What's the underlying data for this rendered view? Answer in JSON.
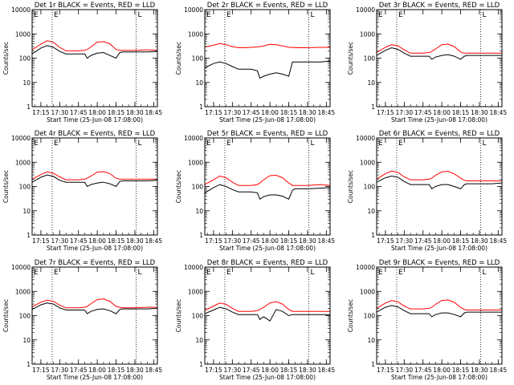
{
  "figure": {
    "x_tick_labels": [
      "17:15",
      "17:30",
      "17:45",
      "18:00",
      "18:15",
      "18:30",
      "18:45"
    ],
    "y_tick_labels": [
      "1",
      "10",
      "100",
      "1000",
      "10000"
    ],
    "ylabel": "Counts/sec",
    "xlabel": "Start Time (25-Jun-08 17:08:00)",
    "marker_labels": [
      "E",
      "L"
    ],
    "colors": {
      "events": "#000000",
      "lld": "#ff0000",
      "axes": "#000000"
    }
  },
  "chart_data": [
    {
      "type": "line",
      "title": "Det 1r BLACK = Events, RED = LLD",
      "xlabel": "Start Time (25-Jun-08 17:08:00)",
      "ylabel": "Counts/sec",
      "x_range": [
        "17:08",
        "18:48"
      ],
      "ylim": [
        1,
        10000
      ],
      "y_scale": "log",
      "vertical_markers": [
        {
          "label": "E",
          "x": "17:24"
        },
        {
          "label": "L",
          "x": "18:31"
        }
      ],
      "x": [
        "17:08",
        "17:15",
        "17:20",
        "17:25",
        "17:30",
        "17:35",
        "17:40",
        "17:45",
        "17:50",
        "17:52",
        "17:55",
        "18:00",
        "18:05",
        "18:10",
        "18:15",
        "18:18",
        "18:20",
        "18:30",
        "18:40",
        "18:48"
      ],
      "series": [
        {
          "name": "",
          "color": "#ff0000",
          "values": [
            220,
            380,
            520,
            450,
            280,
            200,
            200,
            200,
            210,
            230,
            290,
            460,
            480,
            390,
            230,
            210,
            210,
            210,
            220,
            210
          ]
        },
        {
          "name": "",
          "color": "#000000",
          "values": [
            150,
            260,
            330,
            280,
            190,
            150,
            150,
            150,
            150,
            100,
            130,
            160,
            170,
            130,
            100,
            170,
            180,
            180,
            180,
            190
          ]
        }
      ]
    },
    {
      "type": "line",
      "title": "Det 2r BLACK = Events, RED = LLD",
      "xlabel": "Start Time (25-Jun-08 17:08:00)",
      "ylabel": "Counts/sec",
      "x_range": [
        "17:08",
        "18:48"
      ],
      "ylim": [
        1,
        10000
      ],
      "y_scale": "log",
      "vertical_markers": [
        {
          "label": "E",
          "x": "17:24"
        },
        {
          "label": "L",
          "x": "18:31"
        }
      ],
      "x": [
        "17:08",
        "17:15",
        "17:20",
        "17:25",
        "17:30",
        "17:35",
        "17:40",
        "17:45",
        "17:50",
        "17:52",
        "17:55",
        "18:00",
        "18:05",
        "18:10",
        "18:15",
        "18:18",
        "18:20",
        "18:30",
        "18:40",
        "18:48"
      ],
      "series": [
        {
          "name": "",
          "color": "#ff0000",
          "values": [
            290,
            340,
            400,
            360,
            300,
            270,
            270,
            280,
            290,
            300,
            320,
            370,
            360,
            320,
            280,
            280,
            270,
            270,
            280,
            280
          ]
        },
        {
          "name": "",
          "color": "#000000",
          "values": [
            40,
            60,
            70,
            60,
            45,
            35,
            35,
            35,
            30,
            15,
            18,
            22,
            25,
            22,
            18,
            70,
            70,
            70,
            70,
            75
          ]
        }
      ]
    },
    {
      "type": "line",
      "title": "Det 3r BLACK = Events, RED = LLD",
      "xlabel": "Start Time (25-Jun-08 17:08:00)",
      "ylabel": "Counts/sec",
      "x_range": [
        "17:08",
        "18:48"
      ],
      "ylim": [
        1,
        10000
      ],
      "y_scale": "log",
      "vertical_markers": [
        {
          "label": "E",
          "x": "17:24"
        },
        {
          "label": "L",
          "x": "18:31"
        }
      ],
      "x": [
        "17:08",
        "17:15",
        "17:20",
        "17:25",
        "17:30",
        "17:35",
        "17:40",
        "17:45",
        "17:50",
        "17:52",
        "17:55",
        "18:00",
        "18:05",
        "18:10",
        "18:15",
        "18:18",
        "18:20",
        "18:30",
        "18:40",
        "18:48"
      ],
      "series": [
        {
          "name": "",
          "color": "#ff0000",
          "values": [
            170,
            280,
            360,
            320,
            220,
            160,
            160,
            160,
            170,
            190,
            240,
            360,
            380,
            300,
            180,
            160,
            160,
            160,
            160,
            160
          ]
        },
        {
          "name": "",
          "color": "#000000",
          "values": [
            130,
            210,
            270,
            230,
            160,
            120,
            120,
            120,
            120,
            90,
            110,
            130,
            140,
            120,
            90,
            120,
            130,
            130,
            130,
            130
          ]
        }
      ]
    },
    {
      "type": "line",
      "title": "Det 4r BLACK = Events, RED = LLD",
      "xlabel": "Start Time (25-Jun-08 17:08:00)",
      "ylabel": "Counts/sec",
      "x_range": [
        "17:08",
        "18:48"
      ],
      "ylim": [
        1,
        10000
      ],
      "y_scale": "log",
      "vertical_markers": [
        {
          "label": "E",
          "x": "17:24"
        },
        {
          "label": "L",
          "x": "18:31"
        }
      ],
      "x": [
        "17:08",
        "17:15",
        "17:20",
        "17:25",
        "17:30",
        "17:35",
        "17:40",
        "17:45",
        "17:50",
        "17:52",
        "17:55",
        "18:00",
        "18:05",
        "18:10",
        "18:15",
        "18:18",
        "18:20",
        "18:30",
        "18:40",
        "18:48"
      ],
      "series": [
        {
          "name": "",
          "color": "#ff0000",
          "values": [
            200,
            310,
            400,
            350,
            250,
            190,
            190,
            190,
            200,
            220,
            270,
            390,
            410,
            340,
            220,
            200,
            200,
            200,
            200,
            200
          ]
        },
        {
          "name": "",
          "color": "#000000",
          "values": [
            150,
            240,
            300,
            260,
            180,
            150,
            150,
            150,
            150,
            100,
            120,
            140,
            150,
            130,
            100,
            160,
            170,
            170,
            170,
            180
          ]
        }
      ]
    },
    {
      "type": "line",
      "title": "Det 5r BLACK = Events, RED = LLD",
      "xlabel": "Start Time (25-Jun-08 17:08:00)",
      "ylabel": "Counts/sec",
      "x_range": [
        "17:08",
        "18:48"
      ],
      "ylim": [
        1,
        10000
      ],
      "y_scale": "log",
      "vertical_markers": [
        {
          "label": "E",
          "x": "17:24"
        },
        {
          "label": "L",
          "x": "18:31"
        }
      ],
      "x": [
        "17:08",
        "17:15",
        "17:20",
        "17:25",
        "17:30",
        "17:35",
        "17:40",
        "17:45",
        "17:50",
        "17:52",
        "17:55",
        "18:00",
        "18:05",
        "18:10",
        "18:15",
        "18:18",
        "18:20",
        "18:30",
        "18:40",
        "18:48"
      ],
      "series": [
        {
          "name": "",
          "color": "#ff0000",
          "values": [
            120,
            190,
            270,
            230,
            150,
            110,
            110,
            110,
            120,
            140,
            190,
            280,
            290,
            230,
            140,
            110,
            110,
            110,
            120,
            110
          ]
        },
        {
          "name": "",
          "color": "#000000",
          "values": [
            55,
            90,
            120,
            100,
            75,
            60,
            60,
            60,
            55,
            30,
            38,
            45,
            45,
            40,
            30,
            70,
            80,
            80,
            85,
            90
          ]
        }
      ]
    },
    {
      "type": "line",
      "title": "Det 6r BLACK = Events, RED = LLD",
      "xlabel": "Start Time (25-Jun-08 17:08:00)",
      "ylabel": "Counts/sec",
      "x_range": [
        "17:08",
        "18:48"
      ],
      "ylim": [
        1,
        10000
      ],
      "y_scale": "log",
      "vertical_markers": [
        {
          "label": "E",
          "x": "17:24"
        },
        {
          "label": "L",
          "x": "18:31"
        }
      ],
      "x": [
        "17:08",
        "17:15",
        "17:20",
        "17:25",
        "17:30",
        "17:35",
        "17:40",
        "17:45",
        "17:50",
        "17:52",
        "17:55",
        "18:00",
        "18:05",
        "18:10",
        "18:15",
        "18:18",
        "18:20",
        "18:30",
        "18:40",
        "18:48"
      ],
      "series": [
        {
          "name": "",
          "color": "#ff0000",
          "values": [
            200,
            340,
            430,
            380,
            250,
            190,
            190,
            190,
            200,
            220,
            290,
            400,
            420,
            330,
            220,
            180,
            170,
            170,
            170,
            170
          ]
        },
        {
          "name": "",
          "color": "#000000",
          "values": [
            150,
            230,
            270,
            240,
            160,
            120,
            120,
            120,
            120,
            80,
            100,
            120,
            120,
            100,
            80,
            120,
            130,
            130,
            130,
            140
          ]
        }
      ]
    },
    {
      "type": "line",
      "title": "Det 7r BLACK = Events, RED = LLD",
      "xlabel": "Start Time (25-Jun-08 17:08:00)",
      "ylabel": "Counts/sec",
      "x_range": [
        "17:08",
        "18:48"
      ],
      "ylim": [
        1,
        10000
      ],
      "y_scale": "log",
      "vertical_markers": [
        {
          "label": "E",
          "x": "17:24"
        },
        {
          "label": "L",
          "x": "18:31"
        }
      ],
      "x": [
        "17:08",
        "17:15",
        "17:20",
        "17:25",
        "17:30",
        "17:35",
        "17:40",
        "17:45",
        "17:50",
        "17:52",
        "17:55",
        "18:00",
        "18:05",
        "18:10",
        "18:15",
        "18:18",
        "18:20",
        "18:30",
        "18:40",
        "18:48"
      ],
      "series": [
        {
          "name": "",
          "color": "#ff0000",
          "values": [
            230,
            360,
            430,
            390,
            270,
            210,
            210,
            210,
            220,
            240,
            310,
            460,
            490,
            390,
            240,
            220,
            210,
            210,
            220,
            220
          ]
        },
        {
          "name": "",
          "color": "#000000",
          "values": [
            180,
            280,
            330,
            300,
            210,
            170,
            170,
            170,
            170,
            120,
            150,
            180,
            190,
            160,
            120,
            180,
            190,
            190,
            190,
            200
          ]
        }
      ]
    },
    {
      "type": "line",
      "title": "Det 8r BLACK = Events, RED = LLD",
      "xlabel": "Start Time (25-Jun-08 17:08:00)",
      "ylabel": "Counts/sec",
      "x_range": [
        "17:08",
        "18:48"
      ],
      "ylim": [
        1,
        10000
      ],
      "y_scale": "log",
      "vertical_markers": [
        {
          "label": "E",
          "x": "17:24"
        },
        {
          "label": "L",
          "x": "18:31"
        }
      ],
      "x": [
        "17:08",
        "17:15",
        "17:20",
        "17:25",
        "17:30",
        "17:35",
        "17:40",
        "17:45",
        "17:50",
        "17:52",
        "17:55",
        "18:00",
        "18:05",
        "18:10",
        "18:15",
        "18:18",
        "18:20",
        "18:30",
        "18:40",
        "18:48"
      ],
      "series": [
        {
          "name": "",
          "color": "#ff0000",
          "values": [
            160,
            250,
            330,
            290,
            200,
            150,
            150,
            150,
            160,
            180,
            220,
            330,
            380,
            300,
            180,
            150,
            150,
            150,
            150,
            150
          ]
        },
        {
          "name": "",
          "color": "#000000",
          "values": [
            120,
            170,
            220,
            190,
            140,
            110,
            110,
            110,
            110,
            70,
            90,
            60,
            180,
            150,
            100,
            110,
            110,
            110,
            110,
            110
          ]
        }
      ]
    },
    {
      "type": "line",
      "title": "Det 9r BLACK = Events, RED = LLD",
      "xlabel": "Start Time (25-Jun-08 17:08:00)",
      "ylabel": "Counts/sec",
      "x_range": [
        "17:08",
        "18:48"
      ],
      "ylim": [
        1,
        10000
      ],
      "y_scale": "log",
      "vertical_markers": [
        {
          "label": "E",
          "x": "17:24"
        },
        {
          "label": "L",
          "x": "18:31"
        }
      ],
      "x": [
        "17:08",
        "17:15",
        "17:20",
        "17:25",
        "17:30",
        "17:35",
        "17:40",
        "17:45",
        "17:50",
        "17:52",
        "17:55",
        "18:00",
        "18:05",
        "18:10",
        "18:15",
        "18:18",
        "18:20",
        "18:30",
        "18:40",
        "18:48"
      ],
      "series": [
        {
          "name": "",
          "color": "#ff0000",
          "values": [
            200,
            330,
            420,
            370,
            250,
            190,
            190,
            190,
            200,
            220,
            290,
            420,
            440,
            350,
            220,
            180,
            170,
            170,
            170,
            170
          ]
        },
        {
          "name": "",
          "color": "#000000",
          "values": [
            140,
            220,
            260,
            230,
            160,
            120,
            120,
            120,
            120,
            90,
            110,
            130,
            130,
            110,
            90,
            130,
            140,
            140,
            140,
            140
          ]
        }
      ]
    }
  ]
}
